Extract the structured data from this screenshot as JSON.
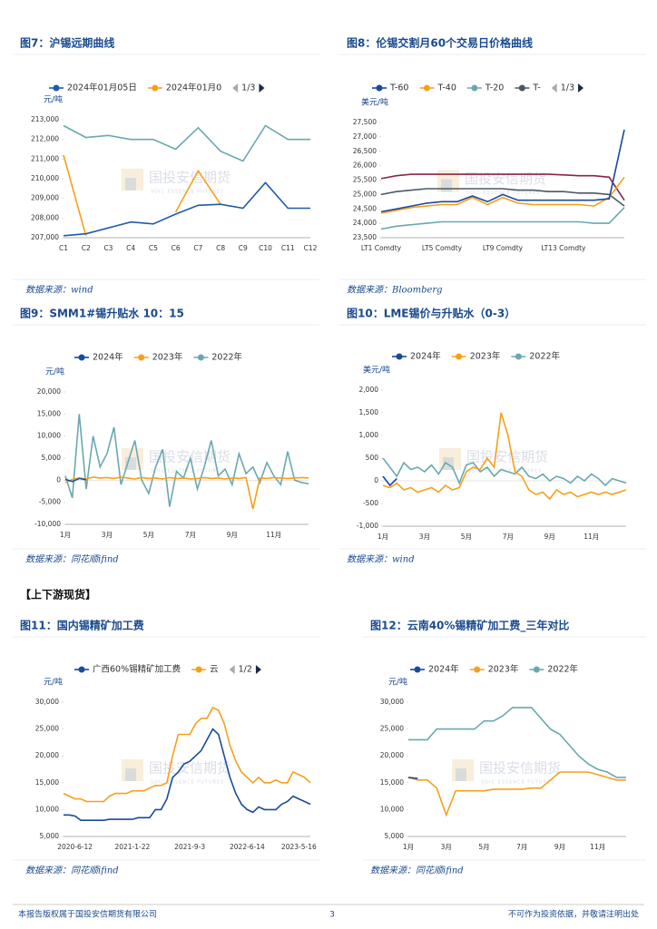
{
  "section": "【上下游现货】",
  "footer": {
    "left": "本报告版权属于国投安信期货有限公司",
    "page": 3,
    "right": "不可作为投资依据，并敬请注明出处"
  },
  "watermark": "国投安信期货",
  "watermark_en": "SDIC ESSENCE FUTURES",
  "chart_data": [
    {
      "type": "line",
      "title": "图7：沪锡远期曲线",
      "source": "数据来源：wind",
      "y_unit": "元/吨",
      "legend_page": "1/3",
      "categories": [
        "C1",
        "C2",
        "C3",
        "C4",
        "C5",
        "C6",
        "C7",
        "C8",
        "C9",
        "C10",
        "C11",
        "C12"
      ],
      "series": [
        {
          "name": "2024年01月05日",
          "color": "#1f5aa8",
          "values": [
            207100,
            207200,
            207500,
            207800,
            207700,
            208200,
            208650,
            208700,
            208500,
            209800,
            208500,
            208500
          ]
        },
        {
          "name": "2024年01月0",
          "color": "#f5a01a",
          "values": [
            211200,
            207100,
            null,
            null,
            null,
            208300,
            210400,
            208700,
            null,
            null,
            null,
            null
          ]
        },
        {
          "color": "#6aa8b0",
          "values": [
            212700,
            212100,
            212200,
            212000,
            212000,
            211500,
            212600,
            211400,
            210900,
            212700,
            212000,
            212000
          ]
        }
      ],
      "ylim": [
        207000,
        213000
      ],
      "yticks": [
        {
          "value": 207000,
          "label": "207,000"
        },
        {
          "value": 208000,
          "label": "208,000"
        },
        {
          "value": 209000,
          "label": "209,000"
        },
        {
          "value": 210000,
          "label": "210,000"
        },
        {
          "value": 211000,
          "label": "211,000"
        },
        {
          "value": 212000,
          "label": "212,000"
        },
        {
          "value": 213000,
          "label": "213,000"
        }
      ]
    },
    {
      "type": "line",
      "title": "图8：伦锡交割月60个交易日价格曲线",
      "source": "数据来源：Bloomberg",
      "y_unit": "美元/吨",
      "legend_page": "1/3",
      "categories": [
        "LT1 Comdty",
        null,
        null,
        null,
        "LT5 Comdty",
        null,
        null,
        null,
        "LT9 Comdty",
        null,
        null,
        null,
        "LT13 Comdty",
        null,
        null,
        null,
        null
      ],
      "series": [
        {
          "name": "T-60",
          "color": "#1a4a9c",
          "values": [
            24400,
            24500,
            24600,
            24700,
            24750,
            24750,
            24950,
            24750,
            25000,
            24800,
            24800,
            24800,
            24800,
            24800,
            24800,
            24850,
            27250
          ]
        },
        {
          "name": "T-40",
          "color": "#f5a01a",
          "values": [
            24350,
            24450,
            24550,
            24600,
            24650,
            24650,
            24900,
            24650,
            24900,
            24700,
            24650,
            24650,
            24650,
            24650,
            24600,
            24900,
            25600
          ]
        },
        {
          "name": "T-20",
          "color": "#6aa8b0",
          "values": [
            23800,
            23900,
            23950,
            24000,
            24050,
            24050,
            24050,
            24050,
            24050,
            24050,
            24050,
            24050,
            24050,
            24050,
            24000,
            24000,
            24550
          ]
        },
        {
          "name": "T-",
          "color": "#4a5866",
          "values": [
            25000,
            25100,
            25150,
            25200,
            25200,
            25200,
            25200,
            25200,
            25200,
            25150,
            25150,
            25100,
            25100,
            25050,
            25050,
            25000,
            24600
          ]
        },
        {
          "color": "#8b2346",
          "values": [
            25550,
            25650,
            25700,
            25700,
            25700,
            25700,
            25700,
            25700,
            25700,
            25700,
            25700,
            25700,
            25680,
            25650,
            25650,
            25600,
            24800
          ]
        }
      ],
      "ylim": [
        23500,
        27500
      ],
      "yticks": [
        {
          "value": 23500,
          "label": "23,500"
        },
        {
          "value": 24000,
          "label": "24,000"
        },
        {
          "value": 24500,
          "label": "24,500"
        },
        {
          "value": 25000,
          "label": "25,000"
        },
        {
          "value": 25500,
          "label": "25,500"
        },
        {
          "value": 26000,
          "label": "26,000"
        },
        {
          "value": 26500,
          "label": "26,500"
        },
        {
          "value": 27000,
          "label": "27,000"
        },
        {
          "value": 27500,
          "label": "27,500"
        }
      ]
    },
    {
      "type": "line",
      "title": "图9：SMM1#锡升贴水 10：15",
      "source": "数据来源：同花顺ifind",
      "y_unit": "元/吨",
      "categories": [
        "1月",
        null,
        null,
        null,
        null,
        null,
        "3月",
        null,
        null,
        null,
        null,
        null,
        "5月",
        null,
        null,
        null,
        null,
        null,
        "7月",
        null,
        null,
        null,
        null,
        null,
        "9月",
        null,
        null,
        null,
        null,
        null,
        "11月",
        null,
        null,
        null,
        null,
        null
      ],
      "series": [
        {
          "name": "2024年",
          "color": "#1a4a9c",
          "values": [
            200,
            -300,
            400,
            100,
            null,
            null,
            null,
            null,
            null,
            null,
            null,
            null,
            null,
            null,
            null,
            null,
            null,
            null,
            null,
            null,
            null,
            null,
            null,
            null,
            null,
            null,
            null,
            null,
            null,
            null,
            null,
            null,
            null,
            null,
            null,
            null
          ]
        },
        {
          "name": "2023年",
          "color": "#f5a01a",
          "values": [
            -500,
            200,
            500,
            300,
            700,
            500,
            600,
            400,
            700,
            500,
            300,
            600,
            400,
            500,
            300,
            600,
            400,
            500,
            300,
            400,
            600,
            400,
            500,
            300,
            500,
            400,
            600,
            -6500,
            500,
            400,
            600,
            500,
            400,
            500,
            600,
            500
          ]
        },
        {
          "name": "2022年",
          "color": "#6aa8b0",
          "values": [
            1000,
            -4000,
            15000,
            -2000,
            10000,
            3000,
            6000,
            12000,
            -1000,
            4000,
            9000,
            0,
            -3000,
            3000,
            7000,
            -6000,
            2000,
            500,
            5000,
            -2000,
            3000,
            9000,
            1000,
            2500,
            -1000,
            6000,
            1500,
            3000,
            -500,
            4000,
            1000,
            -1000,
            6500,
            0,
            -500,
            -800
          ]
        }
      ],
      "ylim": [
        -10000,
        20000
      ],
      "yticks": [
        {
          "value": -10000,
          "label": "-10,000"
        },
        {
          "value": -5000,
          "label": "-5,000"
        },
        0,
        {
          "value": 5000,
          "label": "5,000"
        },
        {
          "value": 10000,
          "label": "10,000"
        },
        {
          "value": 15000,
          "label": "15,000"
        },
        {
          "value": 20000,
          "label": "20,000"
        }
      ]
    },
    {
      "type": "line",
      "title": "图10：LME锡价与升贴水（0-3）",
      "source": "数据来源：wind",
      "y_unit": "美元/吨",
      "categories": [
        "1月",
        null,
        null,
        null,
        null,
        null,
        "3月",
        null,
        null,
        null,
        null,
        null,
        "5月",
        null,
        null,
        null,
        null,
        null,
        "7月",
        null,
        null,
        null,
        null,
        null,
        "9月",
        null,
        null,
        null,
        null,
        null,
        "11月",
        null,
        null,
        null,
        null,
        null
      ],
      "series": [
        {
          "name": "2024年",
          "color": "#1a4a9c",
          "values": [
            100,
            -100,
            50,
            null,
            null,
            null,
            null,
            null,
            null,
            null,
            null,
            null,
            null,
            null,
            null,
            null,
            null,
            null,
            null,
            null,
            null,
            null,
            null,
            null,
            null,
            null,
            null,
            null,
            null,
            null,
            null,
            null,
            null,
            null,
            null,
            null
          ]
        },
        {
          "name": "2023年",
          "color": "#f5a01a",
          "values": [
            -100,
            -150,
            -50,
            -200,
            -150,
            -250,
            -200,
            -150,
            -250,
            -100,
            -200,
            -150,
            200,
            300,
            250,
            500,
            300,
            1500,
            1000,
            200,
            100,
            -200,
            -300,
            -250,
            -400,
            -200,
            -300,
            -250,
            -350,
            -300,
            -250,
            -300,
            -250,
            -300,
            -250,
            -200
          ]
        },
        {
          "name": "2022年",
          "color": "#6aa8b0",
          "values": [
            500,
            300,
            100,
            400,
            250,
            300,
            200,
            350,
            150,
            400,
            300,
            -50,
            350,
            400,
            200,
            300,
            100,
            250,
            200,
            150,
            300,
            100,
            50,
            150,
            0,
            100,
            50,
            -50,
            100,
            0,
            150,
            50,
            -100,
            50,
            0,
            -50
          ]
        }
      ],
      "ylim": [
        -1000,
        2000
      ],
      "yticks": [
        {
          "value": -1000,
          "label": "-1,000"
        },
        -500,
        0,
        500,
        {
          "value": 1000,
          "label": "1,000"
        },
        {
          "value": 1500,
          "label": "1,500"
        },
        {
          "value": 2000,
          "label": "2,000"
        }
      ]
    },
    {
      "type": "line",
      "title": "图11：国内锡精矿加工费",
      "source": "数据来源：同花顺ifind",
      "y_unit": "元/吨",
      "legend_page": "1/2",
      "categories": [
        null,
        null,
        "2020-6-12",
        null,
        null,
        null,
        null,
        null,
        null,
        null,
        null,
        null,
        "2021-1-22",
        null,
        null,
        null,
        null,
        null,
        null,
        null,
        null,
        null,
        "2021-9-3",
        null,
        null,
        null,
        null,
        null,
        null,
        null,
        null,
        null,
        "2022-6-14",
        null,
        null,
        null,
        null,
        null,
        null,
        null,
        null,
        "2023-5-16",
        null,
        null
      ],
      "series": [
        {
          "name": "广西60%锡精矿加工费",
          "color": "#1a4a9c",
          "values": [
            9000,
            9000,
            8800,
            8000,
            8000,
            8000,
            8000,
            8000,
            8200,
            8200,
            8200,
            8200,
            8200,
            8500,
            8500,
            8500,
            10000,
            10000,
            12000,
            16000,
            17000,
            18500,
            19000,
            20000,
            21000,
            23000,
            25000,
            24000,
            20000,
            16000,
            13000,
            11000,
            10000,
            9500,
            10500,
            10000,
            10000,
            10000,
            11000,
            11500,
            12500,
            12000,
            11500,
            11000
          ]
        },
        {
          "name": "云",
          "color": "#f5a01a",
          "values": [
            13000,
            12500,
            12000,
            12000,
            11500,
            11500,
            11500,
            11500,
            12500,
            13000,
            13000,
            13000,
            13500,
            13500,
            13500,
            14000,
            14500,
            14500,
            15000,
            20000,
            24000,
            24000,
            24000,
            26000,
            27000,
            27000,
            29000,
            28500,
            26000,
            22000,
            19000,
            17000,
            16000,
            15000,
            16000,
            15000,
            15000,
            15500,
            15000,
            15000,
            17000,
            16500,
            16000,
            15000
          ]
        }
      ],
      "ylim": [
        5000,
        30000
      ],
      "yticks": [
        {
          "value": 5000,
          "label": "5,000"
        },
        {
          "value": 10000,
          "label": "10,000"
        },
        {
          "value": 15000,
          "label": "15,000"
        },
        {
          "value": 20000,
          "label": "20,000"
        },
        {
          "value": 25000,
          "label": "25,000"
        },
        {
          "value": 30000,
          "label": "30,000"
        }
      ]
    },
    {
      "type": "line",
      "title": "图12：云南40%锡精矿加工费_三年对比",
      "source": "数据来源：同花顺ifind",
      "y_unit": "元/吨",
      "categories": [
        "1月",
        null,
        null,
        null,
        "3月",
        null,
        null,
        null,
        "5月",
        null,
        null,
        null,
        "7月",
        null,
        null,
        null,
        "9月",
        null,
        null,
        null,
        "11月",
        null,
        null,
        null
      ],
      "series": [
        {
          "name": "2024年",
          "color": "#1a4a9c",
          "values": [
            16000,
            15800,
            null,
            null,
            null,
            null,
            null,
            null,
            null,
            null,
            null,
            null,
            null,
            null,
            null,
            null,
            null,
            null,
            null,
            null,
            null,
            null,
            null,
            null
          ]
        },
        {
          "name": "2023年",
          "color": "#f5a01a",
          "values": [
            16000,
            15500,
            15500,
            14000,
            9000,
            13500,
            13500,
            13500,
            13500,
            13800,
            13800,
            13800,
            13800,
            14000,
            14000,
            15500,
            17000,
            17000,
            17000,
            17000,
            16500,
            16000,
            15500,
            15500
          ]
        },
        {
          "name": "2022年",
          "color": "#6aa8b0",
          "values": [
            23000,
            23000,
            23000,
            25000,
            25000,
            25000,
            25000,
            25000,
            26500,
            26500,
            27500,
            29000,
            29000,
            29000,
            27000,
            25000,
            24000,
            22000,
            20000,
            18500,
            17500,
            17000,
            16000,
            16000
          ]
        }
      ],
      "ylim": [
        5000,
        30000
      ],
      "yticks": [
        {
          "value": 5000,
          "label": "5,000"
        },
        {
          "value": 10000,
          "label": "10,000"
        },
        {
          "value": 15000,
          "label": "15,000"
        },
        {
          "value": 20000,
          "label": "20,000"
        },
        {
          "value": 25000,
          "label": "25,000"
        },
        {
          "value": 30000,
          "label": "30,000"
        }
      ]
    }
  ]
}
